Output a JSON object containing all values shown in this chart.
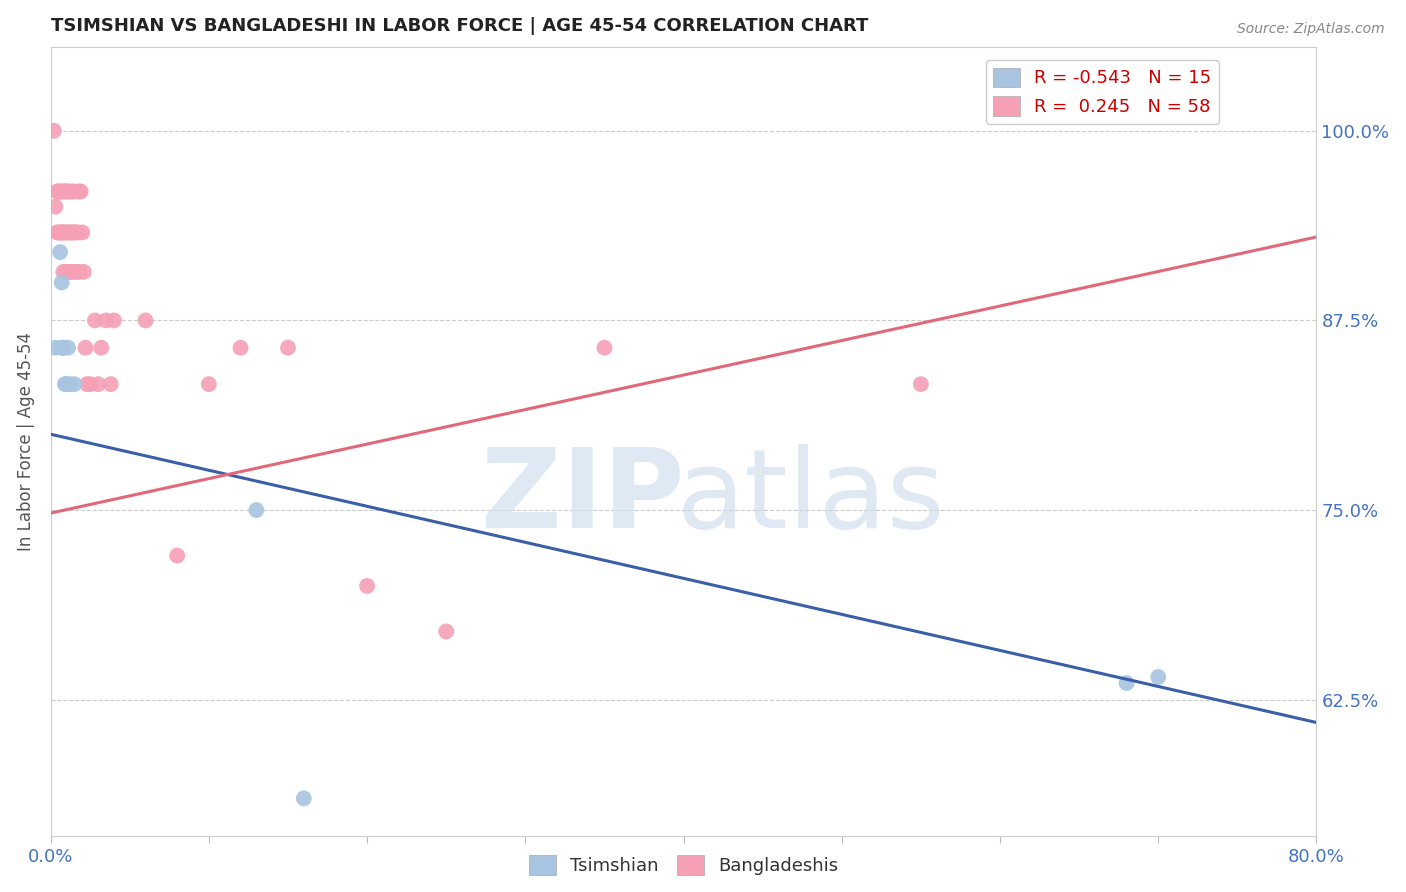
{
  "title": "TSIMSHIAN VS BANGLADESHI IN LABOR FORCE | AGE 45-54 CORRELATION CHART",
  "source": "Source: ZipAtlas.com",
  "ylabel": "In Labor Force | Age 45-54",
  "xlim": [
    0.0,
    0.8
  ],
  "ylim": [
    0.535,
    1.055
  ],
  "yticks": [
    0.625,
    0.75,
    0.875,
    1.0
  ],
  "ytick_labels": [
    "62.5%",
    "75.0%",
    "87.5%",
    "100.0%"
  ],
  "xtick_positions": [
    0.0,
    0.1,
    0.2,
    0.3,
    0.4,
    0.5,
    0.6,
    0.7,
    0.8
  ],
  "xtick_labels": [
    "0.0%",
    "",
    "",
    "",
    "",
    "",
    "",
    "",
    "80.0%"
  ],
  "axis_color": "#4472c4",
  "blue_color": "#a8c4e0",
  "pink_color": "#f5a0b5",
  "blue_line_color": "#3a5fa8",
  "pink_line_color": "#e06878",
  "grid_color": "#cccccc",
  "background_color": "#ffffff",
  "blue_line_x0": 0.0,
  "blue_line_y0": 0.8,
  "blue_line_x1": 0.8,
  "blue_line_y1": 0.61,
  "pink_line_x0": 0.0,
  "pink_line_y0": 0.748,
  "pink_line_x1": 0.8,
  "pink_line_y1": 0.93,
  "tsimshian_x": [
    0.003,
    0.006,
    0.007,
    0.007,
    0.008,
    0.008,
    0.009,
    0.01,
    0.011,
    0.012,
    0.015,
    0.68,
    0.7,
    0.13,
    0.16
  ],
  "tsimshian_y": [
    0.857,
    0.92,
    0.9,
    0.857,
    0.857,
    0.857,
    0.833,
    0.833,
    0.857,
    0.833,
    0.833,
    0.636,
    0.64,
    0.75,
    0.56
  ],
  "bangladeshi_x": [
    0.002,
    0.003,
    0.004,
    0.004,
    0.005,
    0.005,
    0.006,
    0.006,
    0.007,
    0.007,
    0.007,
    0.008,
    0.008,
    0.008,
    0.009,
    0.009,
    0.01,
    0.01,
    0.01,
    0.01,
    0.011,
    0.011,
    0.012,
    0.012,
    0.012,
    0.013,
    0.013,
    0.014,
    0.014,
    0.015,
    0.015,
    0.015,
    0.016,
    0.016,
    0.017,
    0.018,
    0.018,
    0.019,
    0.02,
    0.021,
    0.022,
    0.023,
    0.025,
    0.028,
    0.03,
    0.032,
    0.035,
    0.038,
    0.04,
    0.06,
    0.08,
    0.1,
    0.12,
    0.15,
    0.2,
    0.25,
    0.35,
    0.55
  ],
  "bangladeshi_y": [
    1.0,
    0.95,
    0.96,
    0.933,
    0.96,
    0.933,
    0.96,
    0.933,
    0.96,
    0.933,
    0.933,
    0.96,
    0.933,
    0.907,
    0.96,
    0.933,
    0.96,
    0.933,
    0.96,
    0.907,
    0.96,
    0.933,
    0.96,
    0.933,
    0.907,
    0.933,
    0.907,
    0.96,
    0.933,
    0.96,
    0.933,
    0.907,
    0.933,
    0.907,
    0.933,
    0.96,
    0.907,
    0.96,
    0.933,
    0.907,
    0.857,
    0.833,
    0.833,
    0.875,
    0.833,
    0.857,
    0.875,
    0.833,
    0.875,
    0.875,
    0.72,
    0.833,
    0.857,
    0.857,
    0.7,
    0.67,
    0.857,
    0.833
  ],
  "watermark_zip": "ZIP",
  "watermark_atlas": "atlas",
  "legend_r_blue": "R = -0.543",
  "legend_n_blue": "N = 15",
  "legend_r_pink": "R =  0.245",
  "legend_n_pink": "N = 58"
}
